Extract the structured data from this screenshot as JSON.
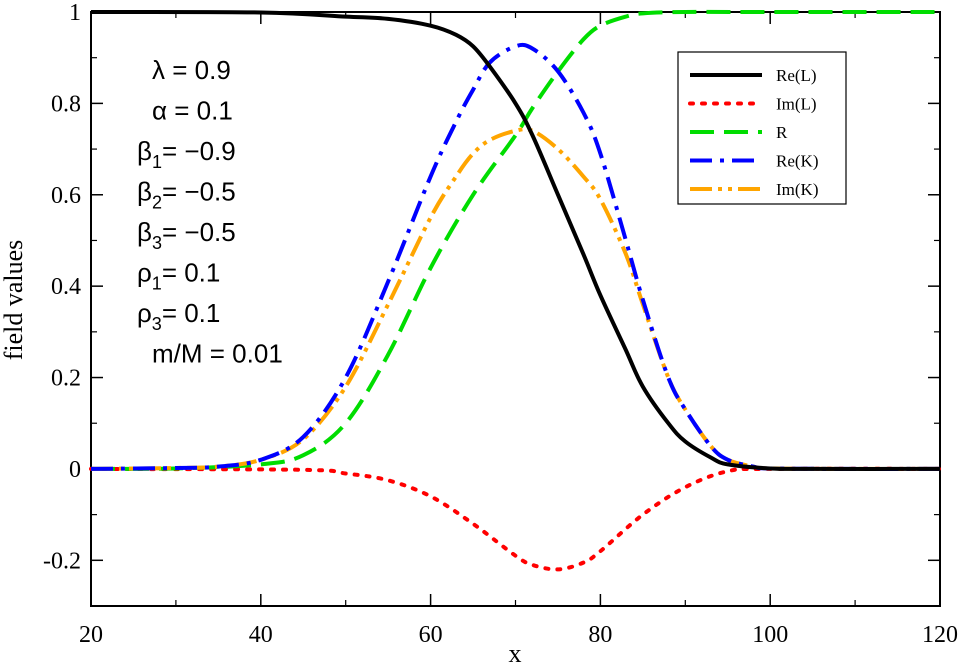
{
  "chart_data": {
    "type": "line",
    "title": "",
    "xlabel": "x",
    "ylabel": "field values",
    "xlim": [
      20,
      120
    ],
    "ylim": [
      -0.3,
      1.0
    ],
    "xticks": [
      20,
      40,
      60,
      80,
      100,
      120
    ],
    "yticks": [
      -0.2,
      0,
      0.2,
      0.4,
      0.6,
      0.8,
      1
    ],
    "ytick_labels": [
      "-0.2",
      "0",
      "0.2",
      "0.4",
      "0.6",
      "0.8",
      "1"
    ],
    "xtick_labels": [
      "20",
      "40",
      "60",
      "80",
      "100",
      "120"
    ],
    "grid": false,
    "legend_position": "top-right",
    "parameters": [
      {
        "sym": "λ",
        "sub": "",
        "eq": " = 0.9"
      },
      {
        "sym": "α",
        "sub": "",
        "eq": " = 0.1"
      },
      {
        "sym": "β",
        "sub": "1",
        "eq": "= −0.9"
      },
      {
        "sym": "β",
        "sub": "2",
        "eq": "= −0.5"
      },
      {
        "sym": "β",
        "sub": "3",
        "eq": "= −0.5"
      },
      {
        "sym": "ρ",
        "sub": "1",
        "eq": "= 0.1"
      },
      {
        "sym": "ρ",
        "sub": "3",
        "eq": "= 0.1"
      },
      {
        "sym": "m/M",
        "sub": "",
        "eq": " = 0.01"
      }
    ],
    "series": [
      {
        "name": "Re(L)",
        "color": "#000000",
        "dash": "solid",
        "x": [
          20,
          40,
          50,
          55,
          60,
          63,
          65,
          67,
          70,
          72,
          75,
          78,
          80,
          83,
          85,
          88,
          90,
          93,
          95,
          100,
          105,
          120
        ],
        "y": [
          1.0,
          0.999,
          0.99,
          0.985,
          0.97,
          0.95,
          0.925,
          0.88,
          0.8,
          0.73,
          0.6,
          0.47,
          0.38,
          0.26,
          0.18,
          0.1,
          0.06,
          0.025,
          0.01,
          0.001,
          0.0,
          0.0
        ]
      },
      {
        "name": "Im(L)",
        "color": "#ff0000",
        "dash": "dotted",
        "x": [
          20,
          45,
          50,
          55,
          60,
          65,
          70,
          72,
          75,
          78,
          80,
          85,
          90,
          95,
          100,
          120
        ],
        "y": [
          0.0,
          -0.002,
          -0.01,
          -0.025,
          -0.06,
          -0.12,
          -0.19,
          -0.21,
          -0.22,
          -0.205,
          -0.18,
          -0.1,
          -0.04,
          -0.005,
          0.0,
          0.0
        ]
      },
      {
        "name": "R",
        "color": "#00dd00",
        "dash": "dashed",
        "x": [
          20,
          30,
          40,
          45,
          50,
          55,
          60,
          65,
          70,
          72,
          75,
          78,
          80,
          83,
          85,
          90,
          100,
          120
        ],
        "y": [
          0.0,
          0.001,
          0.01,
          0.03,
          0.1,
          0.25,
          0.44,
          0.6,
          0.73,
          0.79,
          0.87,
          0.94,
          0.97,
          0.99,
          0.997,
          1.0,
          1.0,
          1.0
        ]
      },
      {
        "name": "Re(K)",
        "color": "#0000ff",
        "dash": "dashdot",
        "x": [
          20,
          30,
          35,
          40,
          45,
          50,
          55,
          60,
          63,
          65,
          67,
          70,
          72,
          75,
          78,
          80,
          83,
          85,
          88,
          90,
          93,
          95,
          98,
          100,
          110,
          120
        ],
        "y": [
          0.0,
          0.002,
          0.005,
          0.02,
          0.07,
          0.2,
          0.41,
          0.64,
          0.76,
          0.83,
          0.89,
          0.925,
          0.92,
          0.87,
          0.78,
          0.69,
          0.5,
          0.37,
          0.2,
          0.13,
          0.05,
          0.02,
          0.005,
          0.001,
          0.0,
          0.0
        ]
      },
      {
        "name": "Im(K)",
        "color": "#ffa500",
        "dash": "dashdotdot",
        "x": [
          20,
          30,
          35,
          40,
          45,
          50,
          55,
          60,
          63,
          65,
          67,
          70,
          72,
          75,
          78,
          80,
          83,
          85,
          88,
          90,
          93,
          95,
          98,
          100,
          110,
          120
        ],
        "y": [
          0.0,
          0.002,
          0.005,
          0.02,
          0.065,
          0.18,
          0.36,
          0.55,
          0.64,
          0.69,
          0.72,
          0.74,
          0.74,
          0.7,
          0.64,
          0.59,
          0.47,
          0.36,
          0.2,
          0.13,
          0.05,
          0.02,
          0.005,
          0.001,
          0.0,
          0.0
        ]
      }
    ]
  }
}
